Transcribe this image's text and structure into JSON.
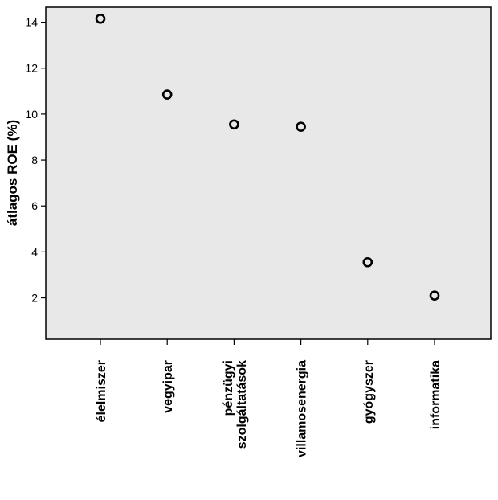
{
  "chart_data": {
    "type": "scatter",
    "categories": [
      [
        "élelmiszer"
      ],
      [
        "vegyipar"
      ],
      [
        "pénzügyi",
        "szolgáltatások"
      ],
      [
        "villamosenergia"
      ],
      [
        "gyógyszer"
      ],
      [
        "informatika"
      ]
    ],
    "values": [
      14.15,
      10.85,
      9.55,
      9.45,
      3.55,
      2.1
    ],
    "ylabel": "átlagos ROE (%)",
    "ylim": [
      0.2,
      14.65
    ],
    "yticks": [
      2,
      4,
      6,
      8,
      10,
      12,
      14
    ],
    "grid": false,
    "plot_background": "#e8e8e8",
    "marker_color": "#000000"
  }
}
